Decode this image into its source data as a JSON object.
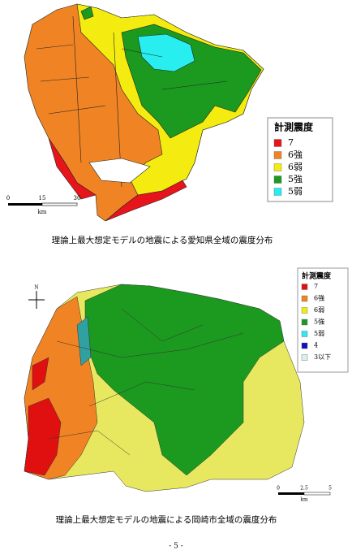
{
  "map1": {
    "legend": {
      "title": "計測震度",
      "items": [
        {
          "label": "7",
          "color": "#e8141c"
        },
        {
          "label": "6強",
          "color": "#f08424"
        },
        {
          "label": "6弱",
          "color": "#f4ec10"
        },
        {
          "label": "5強",
          "color": "#1c9a20"
        },
        {
          "label": "5弱",
          "color": "#28eef0"
        }
      ]
    },
    "scale": {
      "ticks": [
        "0",
        "15",
        "30"
      ],
      "unit": "km"
    },
    "caption": "理論上最大想定モデルの地震による愛知県全域の震度分布"
  },
  "map2": {
    "compass": "N",
    "legend": {
      "title": "計測震度",
      "items": [
        {
          "label": "7",
          "color": "#e01010"
        },
        {
          "label": "6強",
          "color": "#f08424"
        },
        {
          "label": "6弱",
          "color": "#f0ee10"
        },
        {
          "label": "5強",
          "color": "#1c9a20"
        },
        {
          "label": "5弱",
          "color": "#30e8f0"
        },
        {
          "label": "4",
          "color": "#1010c0"
        },
        {
          "label": "3以下",
          "color": "#d8f0f0"
        }
      ]
    },
    "scale": {
      "ticks": [
        "0",
        "2.5",
        "5"
      ],
      "unit": "km"
    },
    "caption": "理論上最大想定モデルの地震による岡崎市全域の震度分布"
  },
  "page_number": "- 5 -"
}
